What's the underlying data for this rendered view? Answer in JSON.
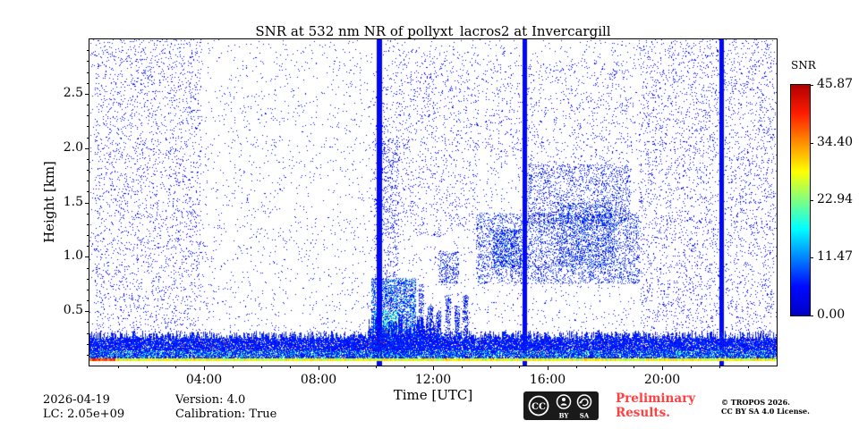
{
  "figure": {
    "background": "#ffffff"
  },
  "chart_data": {
    "type": "heatmap",
    "title": "SNR at 532 nm NR of pollyxt_lacros2 at Invercargill",
    "xlabel": "Time [UTC]",
    "ylabel": "Height [km]",
    "x_range_hours": [
      0,
      24
    ],
    "y_range_km": [
      0,
      3.0
    ],
    "x_ticks": [
      {
        "hour": 4,
        "label": "04:00"
      },
      {
        "hour": 8,
        "label": "08:00"
      },
      {
        "hour": 12,
        "label": "12:00"
      },
      {
        "hour": 16,
        "label": "16:00"
      },
      {
        "hour": 20,
        "label": "20:00"
      }
    ],
    "x_minor_tick_every_hours": 1,
    "y_ticks": [
      {
        "km": 0.5,
        "label": "0.5"
      },
      {
        "km": 1.0,
        "label": "1.0"
      },
      {
        "km": 1.5,
        "label": "1.5"
      },
      {
        "km": 2.0,
        "label": "2.0"
      },
      {
        "km": 2.5,
        "label": "2.5"
      }
    ],
    "y_minor_tick_every_km": 0.1,
    "colorbar": {
      "label": "SNR",
      "min": 0,
      "max": 45.87,
      "colormap": "jet",
      "ticks": [
        {
          "value": 45.87,
          "label": "45.87"
        },
        {
          "value": 34.4,
          "label": "34.40"
        },
        {
          "value": 22.94,
          "label": "22.94"
        },
        {
          "value": 11.47,
          "label": "11.47"
        },
        {
          "value": 0.0,
          "label": "0.00"
        }
      ]
    },
    "seed": 20260419,
    "features": {
      "vertical_lines": [
        {
          "hour": 10.15,
          "width_hours": 0.18
        },
        {
          "hour": 15.2,
          "width_hours": 0.15
        },
        {
          "hour": 22.1,
          "width_hours": 0.15
        }
      ],
      "surface_band": {
        "top_km": 0.28,
        "bright_line_km": 0.05
      },
      "noise_layers": [
        {
          "name": "background",
          "count": 5200,
          "x": [
            0.0,
            24.0
          ],
          "y": [
            0.28,
            3.0
          ],
          "t": [
            0.05,
            0.13
          ],
          "size": 1
        },
        {
          "name": "left-dense",
          "count": 2000,
          "x": [
            0.2,
            3.9
          ],
          "y": [
            0.3,
            3.0
          ],
          "t": [
            0.05,
            0.13
          ],
          "size": 1
        },
        {
          "name": "right-dense",
          "count": 2600,
          "x": [
            19.2,
            23.9
          ],
          "y": [
            0.3,
            3.0
          ],
          "t": [
            0.05,
            0.13
          ],
          "size": 1
        },
        {
          "name": "mid-upper",
          "count": 900,
          "x": [
            10.2,
            13.6
          ],
          "y": [
            1.2,
            2.9
          ],
          "t": [
            0.05,
            0.13
          ],
          "size": 1
        },
        {
          "name": "upper-mid",
          "count": 600,
          "x": [
            13.8,
            19.0
          ],
          "y": [
            1.8,
            2.8
          ],
          "t": [
            0.05,
            0.12
          ],
          "size": 1
        }
      ],
      "clouds": [
        {
          "name": "low-cloud",
          "count": 3200,
          "x": [
            9.85,
            11.4
          ],
          "y": [
            0.08,
            0.8
          ],
          "t": [
            0.06,
            0.3
          ],
          "size": 1
        },
        {
          "name": "low-cloud-bright",
          "count": 600,
          "x": [
            9.95,
            10.75
          ],
          "y": [
            0.05,
            0.5
          ],
          "t": [
            0.25,
            0.6
          ],
          "size": 1
        },
        {
          "name": "line-top-speckle",
          "count": 500,
          "x": [
            9.95,
            10.8
          ],
          "y": [
            0.8,
            2.1
          ],
          "t": [
            0.06,
            0.15
          ],
          "size": 1
        },
        {
          "name": "streak-1",
          "count": 260,
          "x": [
            11.5,
            11.68
          ],
          "y": [
            0.1,
            0.75
          ],
          "t": [
            0.06,
            0.2
          ],
          "size": 1
        },
        {
          "name": "streak-2",
          "count": 240,
          "x": [
            11.82,
            12.0
          ],
          "y": [
            0.1,
            0.55
          ],
          "t": [
            0.06,
            0.2
          ],
          "size": 1
        },
        {
          "name": "streak-3",
          "count": 220,
          "x": [
            12.1,
            12.28
          ],
          "y": [
            0.1,
            0.5
          ],
          "t": [
            0.06,
            0.2
          ],
          "size": 1
        },
        {
          "name": "streak-4",
          "count": 240,
          "x": [
            12.42,
            12.62
          ],
          "y": [
            0.1,
            0.65
          ],
          "t": [
            0.06,
            0.2
          ],
          "size": 1
        },
        {
          "name": "streak-5",
          "count": 200,
          "x": [
            12.75,
            12.93
          ],
          "y": [
            0.2,
            0.55
          ],
          "t": [
            0.06,
            0.2
          ],
          "size": 1
        },
        {
          "name": "streak-6",
          "count": 200,
          "x": [
            13.05,
            13.22
          ],
          "y": [
            0.25,
            0.65
          ],
          "t": [
            0.06,
            0.2
          ],
          "size": 1
        },
        {
          "name": "mid-cloud",
          "count": 3400,
          "x": [
            13.5,
            19.2
          ],
          "y": [
            0.75,
            1.4
          ],
          "t": [
            0.05,
            0.22
          ],
          "size": 1
        },
        {
          "name": "mid-cloud-upper",
          "count": 1500,
          "x": [
            15.3,
            18.9
          ],
          "y": [
            1.3,
            1.85
          ],
          "t": [
            0.05,
            0.2
          ],
          "size": 1
        },
        {
          "name": "mid-cloud-core",
          "count": 1100,
          "x": [
            16.4,
            18.4
          ],
          "y": [
            0.9,
            1.5
          ],
          "t": [
            0.06,
            0.25
          ],
          "size": 1
        },
        {
          "name": "cloud-14h",
          "count": 600,
          "x": [
            14.1,
            15.1
          ],
          "y": [
            0.9,
            1.25
          ],
          "t": [
            0.06,
            0.25
          ],
          "size": 1
        },
        {
          "name": "patch-12h",
          "count": 280,
          "x": [
            12.2,
            12.9
          ],
          "y": [
            0.75,
            1.05
          ],
          "t": [
            0.06,
            0.2
          ],
          "size": 1
        },
        {
          "name": "red-specks",
          "count": 18,
          "x": [
            9.95,
            10.5
          ],
          "y": [
            0.03,
            0.35
          ],
          "t": [
            0.85,
            1.0
          ],
          "size": 2
        }
      ]
    }
  },
  "footer": {
    "date": "2026-04-19",
    "lc": "LC: 2.05e+09",
    "version": "Version: 4.0",
    "calibration": "Calibration: True",
    "preliminary_line1": "Preliminary",
    "preliminary_line2": "Results.",
    "copyright_line1": "© TROPOS 2026.",
    "copyright_line2": "CC BY SA 4.0 License."
  },
  "license_badge": {
    "cc": "CC",
    "by": "BY",
    "sa": "SA"
  }
}
